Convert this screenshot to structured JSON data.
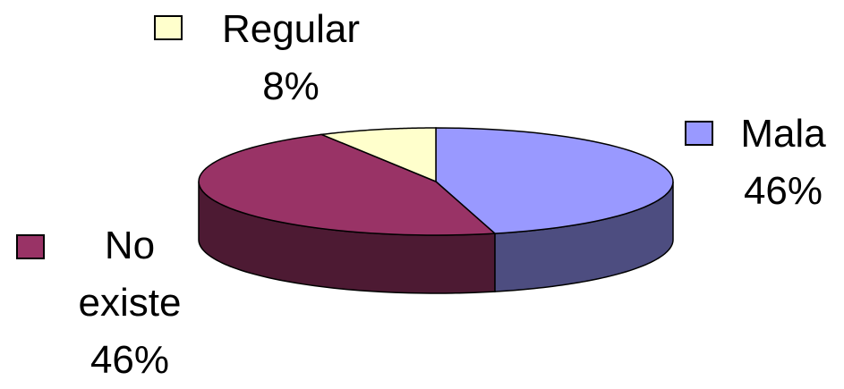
{
  "chart_data": {
    "type": "pie",
    "categories": [
      "Mala",
      "No existe",
      "Regular"
    ],
    "values": [
      46,
      46,
      8
    ],
    "value_labels": [
      "46%",
      "46%",
      "8%"
    ],
    "colors": [
      "#9999ff",
      "#993366",
      "#ffffcc"
    ]
  }
}
